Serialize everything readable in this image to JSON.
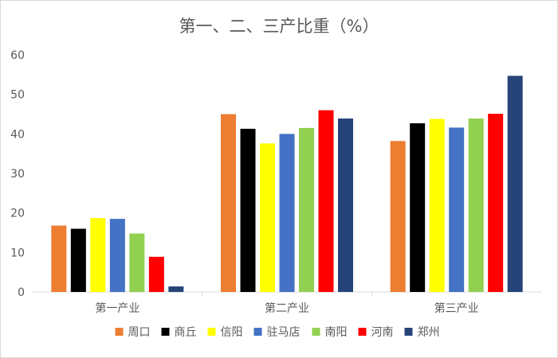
{
  "chart_data": {
    "type": "bar",
    "title": "第一、二、三产比重（%）",
    "xlabel": "",
    "ylabel": "",
    "ylim": [
      0,
      60
    ],
    "yticks": [
      0,
      10,
      20,
      30,
      40,
      50,
      60
    ],
    "grid": false,
    "legend_position": "bottom",
    "categories": [
      "第一产业",
      "第二产业",
      "第三产业"
    ],
    "series": [
      {
        "name": "周口",
        "color": "#ED7D31",
        "values": [
          16.8,
          45.0,
          38.2
        ]
      },
      {
        "name": "商丘",
        "color": "#000000",
        "values": [
          16.0,
          41.3,
          42.7
        ]
      },
      {
        "name": "信阳",
        "color": "#FFFF00",
        "values": [
          18.7,
          37.6,
          43.8
        ]
      },
      {
        "name": "驻马店",
        "color": "#4472C4",
        "values": [
          18.5,
          40.0,
          41.6
        ]
      },
      {
        "name": "南阳",
        "color": "#92D050",
        "values": [
          14.8,
          41.5,
          43.9
        ]
      },
      {
        "name": "河南",
        "color": "#FF0000",
        "values": [
          8.9,
          46.0,
          45.1
        ]
      },
      {
        "name": "郑州",
        "color": "#264478",
        "values": [
          1.4,
          43.9,
          54.7
        ]
      }
    ]
  }
}
